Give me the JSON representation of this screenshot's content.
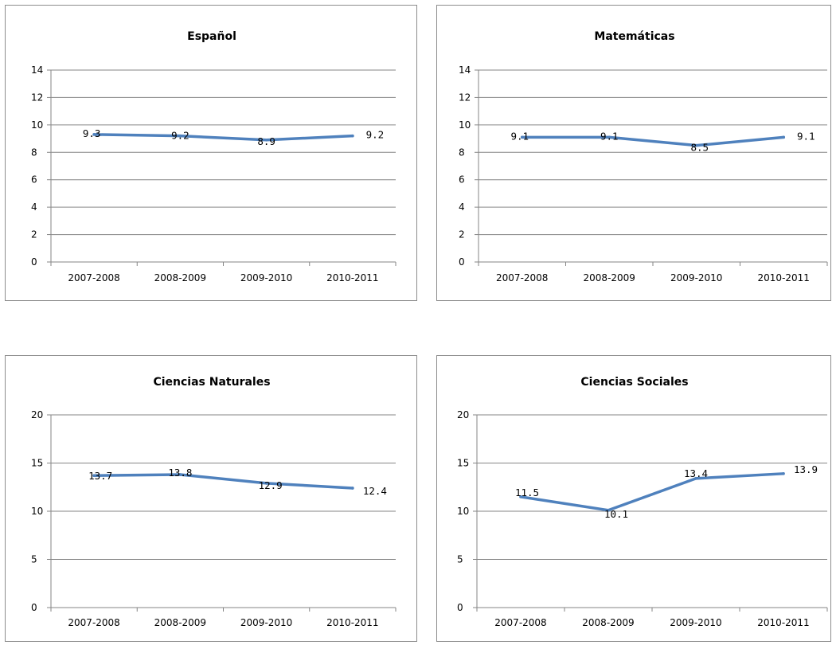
{
  "colors": {
    "line": "#4F81BD",
    "grid": "#868686",
    "axis": "#868686",
    "border": "#8C8C8C"
  },
  "chart_data": [
    {
      "type": "line",
      "title": "Español",
      "categories": [
        "2007-2008",
        "2008-2009",
        "2009-2010",
        "2010-2011"
      ],
      "values": [
        9.3,
        9.2,
        8.9,
        9.2
      ],
      "yticks": [
        "0",
        "2",
        "4",
        "6",
        "8",
        "10",
        "12",
        "14"
      ],
      "ylim": [
        0,
        14
      ],
      "grid": true,
      "legend": false
    },
    {
      "type": "line",
      "title": "Matemáticas",
      "categories": [
        "2007-2008",
        "2008-2009",
        "2009-2010",
        "2010-2011"
      ],
      "values": [
        9.1,
        9.1,
        8.5,
        9.1
      ],
      "yticks": [
        "0",
        "2",
        "4",
        "6",
        "8",
        "10",
        "12",
        "14"
      ],
      "ylim": [
        0,
        14
      ],
      "grid": true,
      "legend": false
    },
    {
      "type": "line",
      "title": "Ciencias Naturales",
      "categories": [
        "2007-2008",
        "2008-2009",
        "2009-2010",
        "2010-2011"
      ],
      "values": [
        13.7,
        13.8,
        12.9,
        12.4
      ],
      "yticks": [
        "0",
        "5",
        "10",
        "15",
        "20"
      ],
      "ylim": [
        0,
        20
      ],
      "grid": true,
      "legend": false
    },
    {
      "type": "line",
      "title": "Ciencias Sociales",
      "categories": [
        "2007-2008",
        "2008-2009",
        "2009-2010",
        "2010-2011"
      ],
      "values": [
        11.5,
        10.1,
        13.4,
        13.9
      ],
      "yticks": [
        "0",
        "5",
        "10",
        "15",
        "20"
      ],
      "ylim": [
        0,
        20
      ],
      "grid": true,
      "legend": false
    }
  ]
}
